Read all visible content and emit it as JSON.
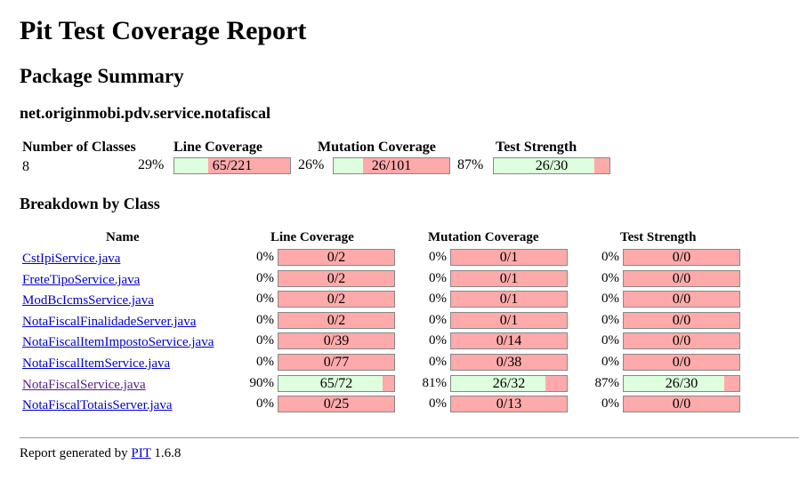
{
  "title": "Pit Test Coverage Report",
  "package_summary": "Package Summary",
  "package_name": "net.originmobi.pdv.service.notafiscal",
  "summary": {
    "headers": {
      "classes": "Number of Classes",
      "line": "Line Coverage",
      "mutation": "Mutation Coverage",
      "strength": "Test Strength"
    },
    "classes": "8",
    "line": {
      "pct": "29%",
      "ratio": "65/221",
      "fill": 0.294
    },
    "mutation": {
      "pct": "26%",
      "ratio": "26/101",
      "fill": 0.257
    },
    "strength": {
      "pct": "87%",
      "ratio": "26/30",
      "fill": 0.867
    }
  },
  "breakdown_title": "Breakdown by Class",
  "table": {
    "headers": {
      "name": "Name",
      "line": "Line Coverage",
      "mutation": "Mutation Coverage",
      "strength": "Test Strength"
    },
    "rows": [
      {
        "name": "CstIpiService.java",
        "visited": false,
        "line": {
          "pct": "0%",
          "ratio": "0/2",
          "fill": 0
        },
        "mutation": {
          "pct": "0%",
          "ratio": "0/1",
          "fill": 0
        },
        "strength": {
          "pct": "0%",
          "ratio": "0/0",
          "fill": 0
        }
      },
      {
        "name": "FreteTipoService.java",
        "visited": false,
        "line": {
          "pct": "0%",
          "ratio": "0/2",
          "fill": 0
        },
        "mutation": {
          "pct": "0%",
          "ratio": "0/1",
          "fill": 0
        },
        "strength": {
          "pct": "0%",
          "ratio": "0/0",
          "fill": 0
        }
      },
      {
        "name": "ModBcIcmsService.java",
        "visited": false,
        "line": {
          "pct": "0%",
          "ratio": "0/2",
          "fill": 0
        },
        "mutation": {
          "pct": "0%",
          "ratio": "0/1",
          "fill": 0
        },
        "strength": {
          "pct": "0%",
          "ratio": "0/0",
          "fill": 0
        }
      },
      {
        "name": "NotaFiscalFinalidadeServer.java",
        "visited": false,
        "line": {
          "pct": "0%",
          "ratio": "0/2",
          "fill": 0
        },
        "mutation": {
          "pct": "0%",
          "ratio": "0/1",
          "fill": 0
        },
        "strength": {
          "pct": "0%",
          "ratio": "0/0",
          "fill": 0
        }
      },
      {
        "name": "NotaFiscalItemImpostoService.java",
        "visited": false,
        "line": {
          "pct": "0%",
          "ratio": "0/39",
          "fill": 0
        },
        "mutation": {
          "pct": "0%",
          "ratio": "0/14",
          "fill": 0
        },
        "strength": {
          "pct": "0%",
          "ratio": "0/0",
          "fill": 0
        }
      },
      {
        "name": "NotaFiscalItemService.java",
        "visited": false,
        "line": {
          "pct": "0%",
          "ratio": "0/77",
          "fill": 0
        },
        "mutation": {
          "pct": "0%",
          "ratio": "0/38",
          "fill": 0
        },
        "strength": {
          "pct": "0%",
          "ratio": "0/0",
          "fill": 0
        }
      },
      {
        "name": "NotaFiscalService.java",
        "visited": true,
        "line": {
          "pct": "90%",
          "ratio": "65/72",
          "fill": 0.903
        },
        "mutation": {
          "pct": "81%",
          "ratio": "26/32",
          "fill": 0.8125
        },
        "strength": {
          "pct": "87%",
          "ratio": "26/30",
          "fill": 0.867
        }
      },
      {
        "name": "NotaFiscalTotaisServer.java",
        "visited": false,
        "line": {
          "pct": "0%",
          "ratio": "0/25",
          "fill": 0
        },
        "mutation": {
          "pct": "0%",
          "ratio": "0/13",
          "fill": 0
        },
        "strength": {
          "pct": "0%",
          "ratio": "0/0",
          "fill": 0
        }
      }
    ]
  },
  "footer": {
    "prefix": "Report generated by",
    "link": "PIT",
    "version": "1.6.8"
  },
  "colors": {
    "covered": "#ddffdd",
    "uncovered": "#ffaaaa",
    "link": "#0000cc",
    "visited": "#551a8b"
  }
}
